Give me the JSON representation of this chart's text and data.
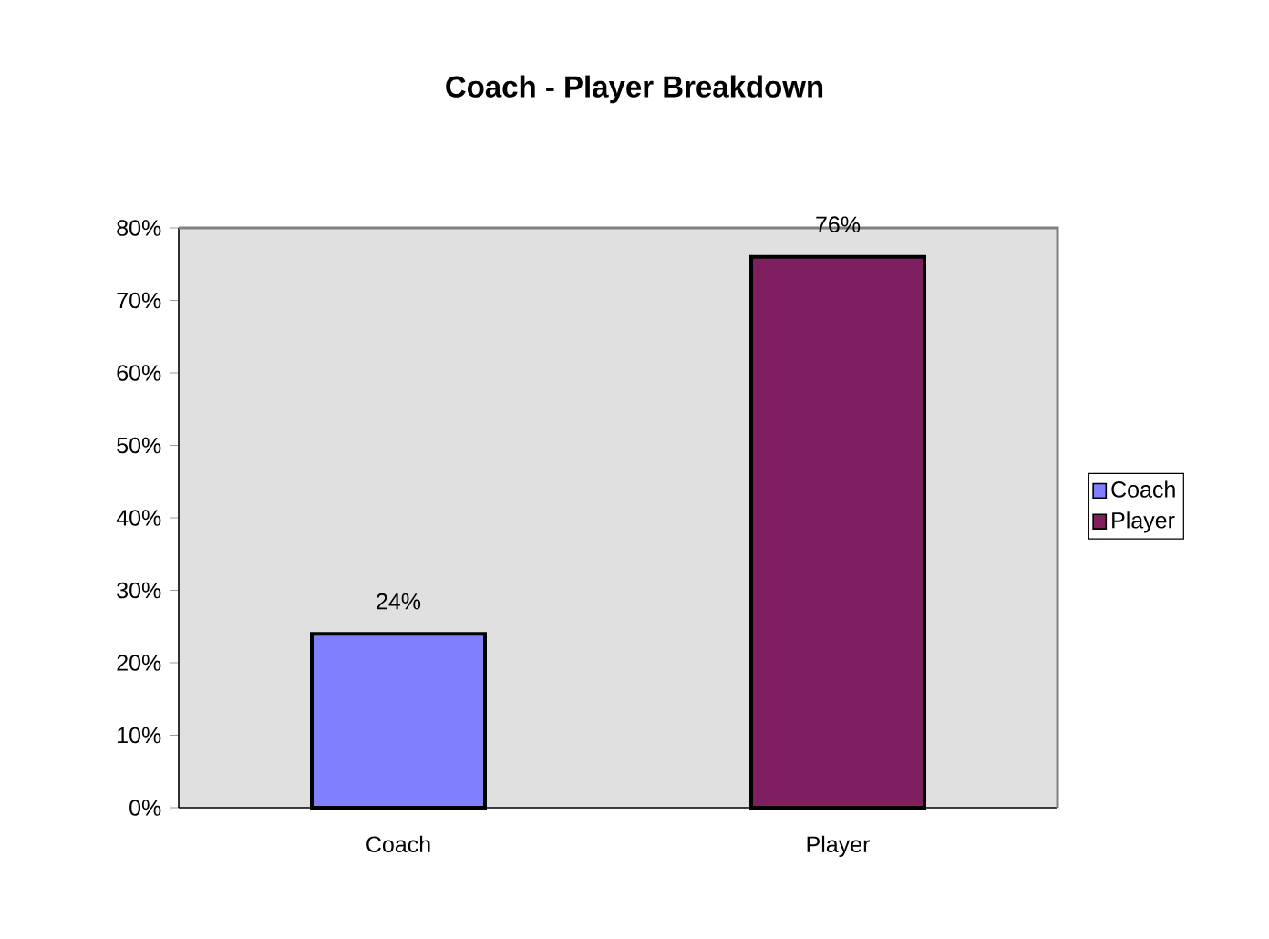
{
  "chart_data": {
    "type": "bar",
    "title": "Coach - Player Breakdown",
    "categories": [
      "Coach",
      "Player"
    ],
    "series": [
      {
        "name": "Coach",
        "color": "#8080ff",
        "values": [
          24,
          null
        ],
        "value_labels": [
          "24%",
          null
        ]
      },
      {
        "name": "Player",
        "color": "#7f1f5f",
        "values": [
          null,
          76
        ],
        "value_labels": [
          null,
          "76%"
        ]
      }
    ],
    "ylim": [
      0,
      80
    ],
    "yticks": [
      {
        "value": 0,
        "label": "0%"
      },
      {
        "value": 10,
        "label": "10%"
      },
      {
        "value": 20,
        "label": "20%"
      },
      {
        "value": 30,
        "label": "30%"
      },
      {
        "value": 40,
        "label": "40%"
      },
      {
        "value": 50,
        "label": "50%"
      },
      {
        "value": 60,
        "label": "60%"
      },
      {
        "value": 70,
        "label": "70%"
      },
      {
        "value": 80,
        "label": "80%"
      }
    ],
    "legend": "right",
    "grid": false
  }
}
